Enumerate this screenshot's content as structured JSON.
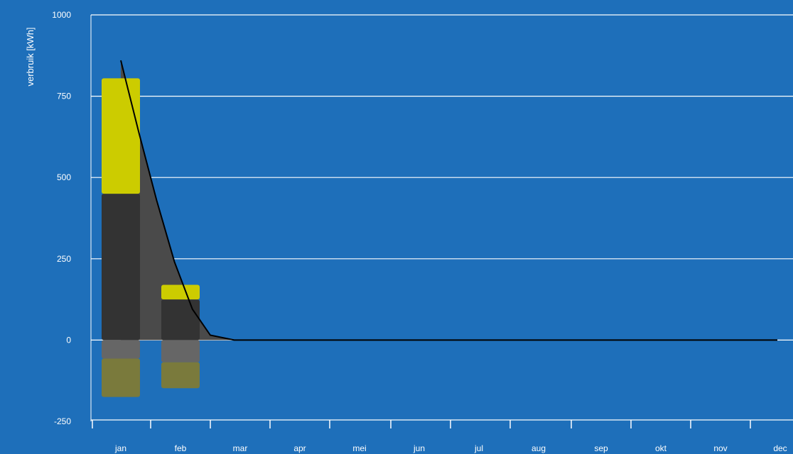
{
  "chart_data": {
    "type": "bar",
    "ylabel": "verbruik [kWh]",
    "ylim": [
      -250,
      1000
    ],
    "yticks": [
      -250,
      0,
      250,
      500,
      750,
      1000
    ],
    "categories": [
      "jan",
      "feb",
      "mar",
      "apr",
      "mei",
      "jun",
      "jul",
      "aug",
      "sep",
      "okt",
      "nov",
      "dec"
    ],
    "stacked": true,
    "series": [
      {
        "color": "#333333",
        "values": [
          450,
          125,
          0,
          0,
          0,
          0,
          0,
          0,
          0,
          0,
          0,
          0
        ]
      },
      {
        "color": "#cccc00",
        "values": [
          355,
          45,
          0,
          0,
          0,
          0,
          0,
          0,
          0,
          0,
          0,
          0
        ]
      },
      {
        "color": "#666666",
        "values": [
          -57,
          -68,
          0,
          0,
          0,
          0,
          0,
          0,
          0,
          0,
          0,
          0
        ]
      },
      {
        "color": "#7a7a3c",
        "values": [
          -118,
          -80,
          0,
          0,
          0,
          0,
          0,
          0,
          0,
          0,
          0,
          0
        ]
      }
    ],
    "curve": {
      "color": "#000000",
      "fill_color": "#4a4a4a",
      "points": [
        [
          0,
          860
        ],
        [
          0.3,
          640
        ],
        [
          0.6,
          430
        ],
        [
          0.9,
          240
        ],
        [
          1.2,
          95
        ],
        [
          1.5,
          15
        ],
        [
          1.9,
          0
        ],
        [
          2.5,
          0
        ],
        [
          11,
          0
        ]
      ]
    },
    "colors": {
      "background": "#1e6fba",
      "grid": "#ffffff",
      "text": "#ffffff"
    },
    "grid": true
  }
}
